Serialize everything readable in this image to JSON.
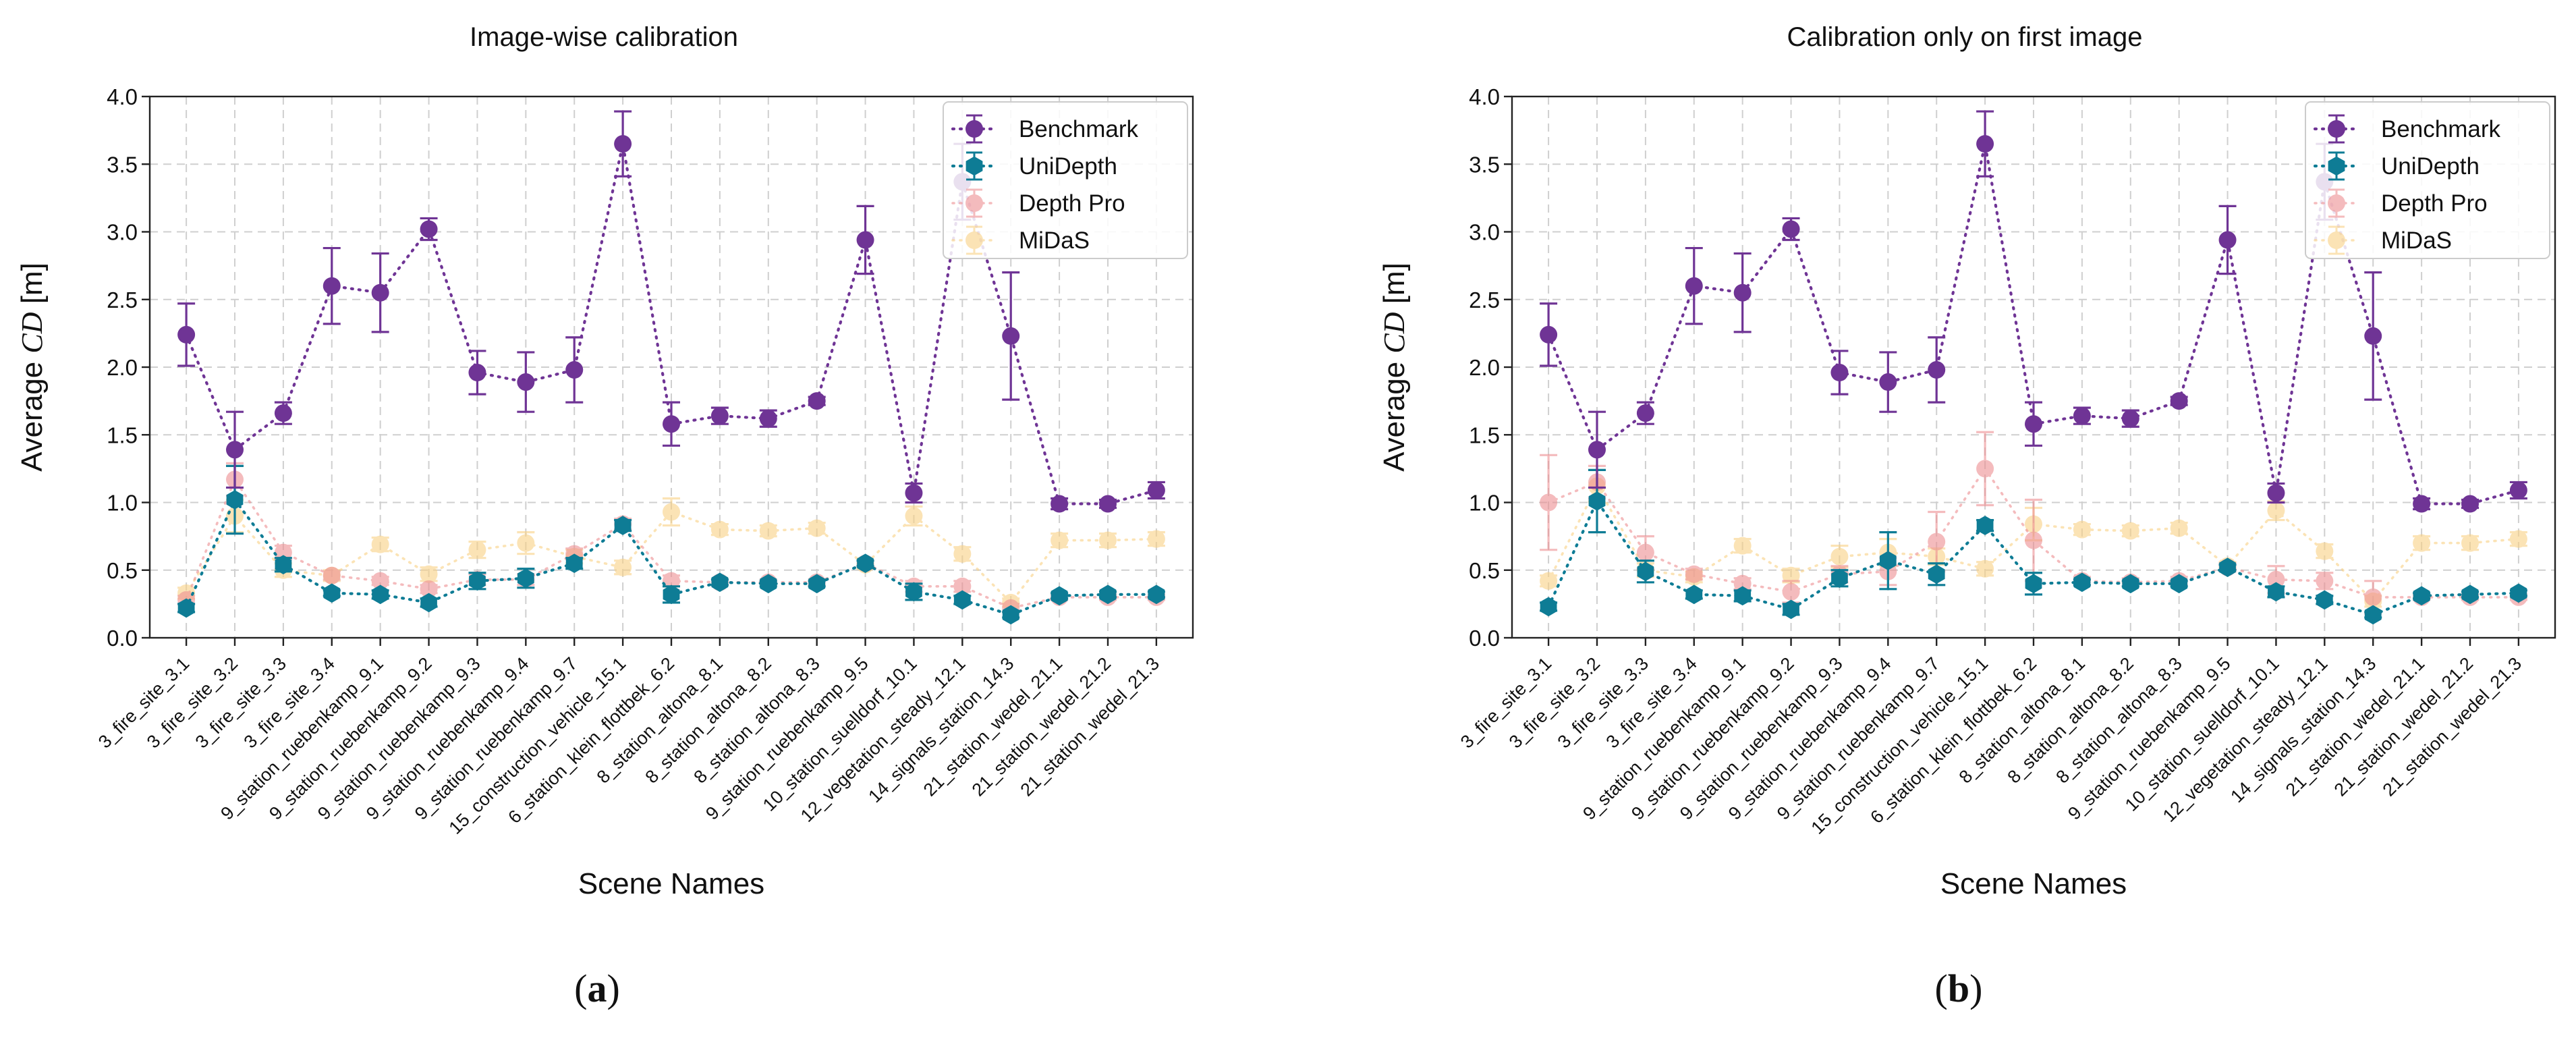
{
  "colors": {
    "benchmark": "#6F3495",
    "unidepth": "#0E7C95",
    "depthpro": "#EE8F92",
    "midas": "#F9D185",
    "grid": "#cfcfcf",
    "axis": "#222222"
  },
  "captions": [
    {
      "letter": "a",
      "open": "(",
      "close": ")"
    },
    {
      "letter": "b",
      "open": "(",
      "close": ")"
    }
  ],
  "chart_data": [
    {
      "type": "line",
      "title": "Image-wise calibration",
      "xlabel": "Scene Names",
      "ylabel": "Average CD [m]",
      "ylabel_prefix": "Average ",
      "ylabel_symbol": "CD",
      "ylabel_suffix": " [m]",
      "ylim": [
        0.0,
        4.0
      ],
      "yticks": [
        0.0,
        0.5,
        1.0,
        1.5,
        2.0,
        2.5,
        3.0,
        3.5,
        4.0
      ],
      "ytick_labels": [
        "0.0",
        "0.5",
        "1.0",
        "1.5",
        "2.0",
        "2.5",
        "3.0",
        "3.5",
        "4.0"
      ],
      "grid": true,
      "legend_position": "top-right",
      "categories": [
        "3_fire_site_3.1",
        "3_fire_site_3.2",
        "3_fire_site_3.3",
        "3_fire_site_3.4",
        "9_station_ruebenkamp_9.1",
        "9_station_ruebenkamp_9.2",
        "9_station_ruebenkamp_9.3",
        "9_station_ruebenkamp_9.4",
        "9_station_ruebenkamp_9.7",
        "15_construction_vehicle_15.1",
        "6_station_klein_flottbek_6.2",
        "8_station_altona_8.1",
        "8_station_altona_8.2",
        "8_station_altona_8.3",
        "9_station_ruebenkamp_9.5",
        "10_station_suelldorf_10.1",
        "12_vegetation_steady_12.1",
        "14_signals_station_14.3",
        "21_station_wedel_21.1",
        "21_station_wedel_21.2",
        "21_station_wedel_21.3"
      ],
      "series": [
        {
          "name": "Benchmark",
          "key": "benchmark",
          "marker": "circle",
          "values": [
            2.24,
            1.39,
            1.66,
            2.6,
            2.55,
            3.02,
            1.96,
            1.89,
            1.98,
            3.65,
            1.58,
            1.64,
            1.62,
            1.75,
            2.94,
            1.07,
            3.37,
            2.23,
            0.99,
            0.99,
            1.09
          ],
          "errors": [
            0.23,
            0.28,
            0.08,
            0.28,
            0.29,
            0.08,
            0.16,
            0.22,
            0.24,
            0.24,
            0.16,
            0.06,
            0.06,
            0.03,
            0.25,
            0.07,
            0.28,
            0.47,
            0.04,
            0.03,
            0.06
          ]
        },
        {
          "name": "UniDepth",
          "key": "unidepth",
          "marker": "hexagon",
          "values": [
            0.22,
            1.02,
            0.54,
            0.33,
            0.32,
            0.26,
            0.42,
            0.44,
            0.55,
            0.83,
            0.32,
            0.41,
            0.4,
            0.4,
            0.55,
            0.34,
            0.28,
            0.17,
            0.31,
            0.32,
            0.32
          ],
          "errors": [
            0.03,
            0.25,
            0.05,
            0.02,
            0.03,
            0.03,
            0.06,
            0.07,
            0.04,
            0.04,
            0.06,
            0.02,
            0.02,
            0.02,
            0.02,
            0.06,
            0.03,
            0.02,
            0.02,
            0.02,
            0.02
          ]
        },
        {
          "name": "Depth Pro",
          "key": "depthpro",
          "marker": "circle",
          "values": [
            0.28,
            1.17,
            0.63,
            0.46,
            0.42,
            0.36,
            0.43,
            0.43,
            0.62,
            0.84,
            0.42,
            0.41,
            0.41,
            0.41,
            0.55,
            0.38,
            0.38,
            0.22,
            0.3,
            0.3,
            0.3
          ],
          "errors": [
            0.03,
            0.12,
            0.05,
            0.03,
            0.03,
            0.03,
            0.04,
            0.04,
            0.04,
            0.04,
            0.04,
            0.02,
            0.02,
            0.02,
            0.02,
            0.04,
            0.04,
            0.03,
            0.02,
            0.02,
            0.02
          ]
        },
        {
          "name": "MiDaS",
          "key": "midas",
          "marker": "circle",
          "values": [
            0.33,
            0.9,
            0.5,
            0.46,
            0.69,
            0.47,
            0.65,
            0.7,
            0.6,
            0.52,
            0.93,
            0.8,
            0.79,
            0.81,
            0.54,
            0.9,
            0.62,
            0.26,
            0.72,
            0.72,
            0.73
          ],
          "errors": [
            0.04,
            0.12,
            0.05,
            0.04,
            0.05,
            0.05,
            0.06,
            0.08,
            0.05,
            0.05,
            0.1,
            0.04,
            0.04,
            0.04,
            0.03,
            0.07,
            0.05,
            0.03,
            0.05,
            0.05,
            0.05
          ]
        }
      ]
    },
    {
      "type": "line",
      "title": "Calibration only on first image",
      "xlabel": "Scene Names",
      "ylabel": "Average CD [m]",
      "ylabel_prefix": "Average ",
      "ylabel_symbol": "CD",
      "ylabel_suffix": " [m]",
      "ylim": [
        0.0,
        4.0
      ],
      "yticks": [
        0.0,
        0.5,
        1.0,
        1.5,
        2.0,
        2.5,
        3.0,
        3.5,
        4.0
      ],
      "ytick_labels": [
        "0.0",
        "0.5",
        "1.0",
        "1.5",
        "2.0",
        "2.5",
        "3.0",
        "3.5",
        "4.0"
      ],
      "grid": true,
      "legend_position": "top-right",
      "categories": [
        "3_fire_site_3.1",
        "3_fire_site_3.2",
        "3_fire_site_3.3",
        "3_fire_site_3.4",
        "9_station_ruebenkamp_9.1",
        "9_station_ruebenkamp_9.2",
        "9_station_ruebenkamp_9.3",
        "9_station_ruebenkamp_9.4",
        "9_station_ruebenkamp_9.7",
        "15_construction_vehicle_15.1",
        "6_station_klein_flottbek_6.2",
        "8_station_altona_8.1",
        "8_station_altona_8.2",
        "8_station_altona_8.3",
        "9_station_ruebenkamp_9.5",
        "10_station_suelldorf_10.1",
        "12_vegetation_steady_12.1",
        "14_signals_station_14.3",
        "21_station_wedel_21.1",
        "21_station_wedel_21.2",
        "21_station_wedel_21.3"
      ],
      "series": [
        {
          "name": "Benchmark",
          "key": "benchmark",
          "marker": "circle",
          "values": [
            2.24,
            1.39,
            1.66,
            2.6,
            2.55,
            3.02,
            1.96,
            1.89,
            1.98,
            3.65,
            1.58,
            1.64,
            1.62,
            1.75,
            2.94,
            1.07,
            3.37,
            2.23,
            0.99,
            0.99,
            1.09
          ],
          "errors": [
            0.23,
            0.28,
            0.08,
            0.28,
            0.29,
            0.08,
            0.16,
            0.22,
            0.24,
            0.24,
            0.16,
            0.06,
            0.06,
            0.03,
            0.25,
            0.07,
            0.28,
            0.47,
            0.04,
            0.03,
            0.06
          ]
        },
        {
          "name": "UniDepth",
          "key": "unidepth",
          "marker": "hexagon",
          "values": [
            0.23,
            1.01,
            0.49,
            0.32,
            0.31,
            0.21,
            0.44,
            0.57,
            0.47,
            0.83,
            0.4,
            0.41,
            0.4,
            0.4,
            0.52,
            0.34,
            0.28,
            0.17,
            0.31,
            0.32,
            0.33
          ],
          "errors": [
            0.03,
            0.23,
            0.08,
            0.03,
            0.04,
            0.04,
            0.06,
            0.21,
            0.08,
            0.04,
            0.08,
            0.02,
            0.02,
            0.02,
            0.02,
            0.04,
            0.03,
            0.02,
            0.02,
            0.02,
            0.02
          ]
        },
        {
          "name": "Depth Pro",
          "key": "depthpro",
          "marker": "circle",
          "values": [
            1.0,
            1.15,
            0.63,
            0.47,
            0.4,
            0.34,
            0.47,
            0.49,
            0.71,
            1.25,
            0.72,
            0.42,
            0.41,
            0.42,
            0.52,
            0.43,
            0.42,
            0.3,
            0.3,
            0.3,
            0.3
          ],
          "errors": [
            0.35,
            0.12,
            0.12,
            0.04,
            0.04,
            0.08,
            0.06,
            0.1,
            0.22,
            0.27,
            0.3,
            0.03,
            0.03,
            0.03,
            0.03,
            0.1,
            0.06,
            0.12,
            0.02,
            0.02,
            0.02
          ]
        },
        {
          "name": "MiDaS",
          "key": "midas",
          "marker": "circle",
          "values": [
            0.42,
            1.12,
            0.5,
            0.45,
            0.68,
            0.46,
            0.6,
            0.63,
            0.6,
            0.51,
            0.84,
            0.8,
            0.79,
            0.81,
            0.53,
            0.94,
            0.64,
            0.27,
            0.7,
            0.7,
            0.73
          ],
          "errors": [
            0.04,
            0.12,
            0.05,
            0.04,
            0.05,
            0.05,
            0.08,
            0.1,
            0.06,
            0.05,
            0.12,
            0.04,
            0.04,
            0.04,
            0.03,
            0.07,
            0.05,
            0.04,
            0.05,
            0.05,
            0.05
          ]
        }
      ]
    }
  ]
}
